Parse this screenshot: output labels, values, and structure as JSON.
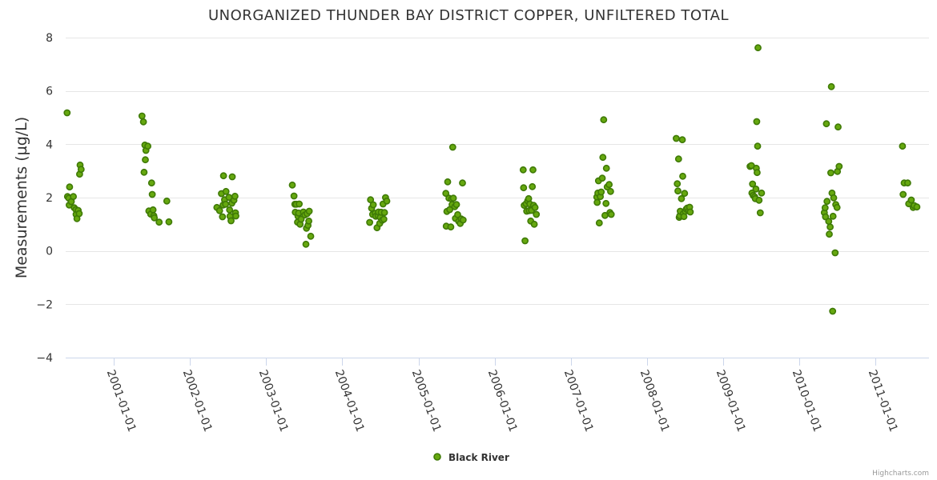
{
  "chart_data": {
    "type": "scatter",
    "title": "UNORGANIZED THUNDER BAY DISTRICT COPPER, UNFILTERED TOTAL",
    "ylabel": "Measurements (µg/L)",
    "xlabel": "",
    "ylim": [
      -4,
      8
    ],
    "yticks": [
      -4,
      -2,
      0,
      2,
      4,
      6,
      8
    ],
    "xlim": [
      "2000-05-15",
      "2011-09-15"
    ],
    "xticks": [
      "2001-01-01",
      "2002-01-01",
      "2003-01-01",
      "2004-01-01",
      "2005-01-01",
      "2006-01-01",
      "2007-01-01",
      "2008-01-01",
      "2009-01-01",
      "2010-01-01",
      "2011-01-01"
    ],
    "grid": true,
    "legend_position": "bottom-center",
    "credits": "Highcharts.com",
    "series": [
      {
        "name": "Black River",
        "color": "#66a80f",
        "points": [
          [
            "2000-05-22",
            5.18
          ],
          [
            "2000-05-24",
            2.04
          ],
          [
            "2000-05-30",
            1.98
          ],
          [
            "2000-06-01",
            1.72
          ],
          [
            "2000-06-03",
            2.4
          ],
          [
            "2000-06-11",
            1.85
          ],
          [
            "2000-06-21",
            2.04
          ],
          [
            "2000-06-25",
            1.62
          ],
          [
            "2000-07-03",
            1.55
          ],
          [
            "2000-07-04",
            1.37
          ],
          [
            "2000-07-08",
            1.21
          ],
          [
            "2000-07-14",
            1.52
          ],
          [
            "2000-07-19",
            1.4
          ],
          [
            "2000-07-21",
            2.88
          ],
          [
            "2000-07-23",
            3.22
          ],
          [
            "2000-07-28",
            3.06
          ],
          [
            "2001-05-16",
            5.06
          ],
          [
            "2001-05-23",
            4.84
          ],
          [
            "2001-05-26",
            2.95
          ],
          [
            "2001-05-30",
            3.97
          ],
          [
            "2001-06-01",
            3.42
          ],
          [
            "2001-06-04",
            3.77
          ],
          [
            "2001-06-13",
            3.93
          ],
          [
            "2001-06-18",
            1.5
          ],
          [
            "2001-06-27",
            1.38
          ],
          [
            "2001-07-01",
            2.55
          ],
          [
            "2001-07-04",
            2.12
          ],
          [
            "2001-07-08",
            1.54
          ],
          [
            "2001-07-12",
            1.32
          ],
          [
            "2001-07-14",
            1.24
          ],
          [
            "2001-08-06",
            1.08
          ],
          [
            "2001-09-12",
            1.87
          ],
          [
            "2001-09-22",
            1.09
          ],
          [
            "2002-05-10",
            1.63
          ],
          [
            "2002-05-23",
            1.51
          ],
          [
            "2002-06-01",
            2.15
          ],
          [
            "2002-06-06",
            1.28
          ],
          [
            "2002-06-09",
            1.72
          ],
          [
            "2002-06-11",
            2.82
          ],
          [
            "2002-06-16",
            1.92
          ],
          [
            "2002-06-21",
            1.75
          ],
          [
            "2002-06-23",
            2.23
          ],
          [
            "2002-07-07",
            2.01
          ],
          [
            "2002-07-10",
            1.54
          ],
          [
            "2002-07-12",
            1.3
          ],
          [
            "2002-07-17",
            1.13
          ],
          [
            "2002-07-21",
            1.79
          ],
          [
            "2002-07-23",
            2.78
          ],
          [
            "2002-07-31",
            1.9
          ],
          [
            "2002-08-05",
            2.05
          ],
          [
            "2002-08-07",
            1.43
          ],
          [
            "2002-08-09",
            1.31
          ],
          [
            "2003-05-07",
            2.47
          ],
          [
            "2003-05-15",
            2.06
          ],
          [
            "2003-05-19",
            1.75
          ],
          [
            "2003-05-21",
            1.45
          ],
          [
            "2003-05-26",
            1.75
          ],
          [
            "2003-06-01",
            1.08
          ],
          [
            "2003-06-03",
            1.3
          ],
          [
            "2003-06-06",
            1.42
          ],
          [
            "2003-06-09",
            1.76
          ],
          [
            "2003-06-13",
            1.0
          ],
          [
            "2003-06-18",
            1.19
          ],
          [
            "2003-06-29",
            1.46
          ],
          [
            "2003-07-06",
            1.35
          ],
          [
            "2003-07-11",
            0.25
          ],
          [
            "2003-07-14",
            0.85
          ],
          [
            "2003-07-17",
            1.4
          ],
          [
            "2003-07-21",
            0.96
          ],
          [
            "2003-07-25",
            1.12
          ],
          [
            "2003-07-27",
            1.49
          ],
          [
            "2003-08-03",
            0.55
          ],
          [
            "2004-05-12",
            1.07
          ],
          [
            "2004-05-16",
            1.92
          ],
          [
            "2004-05-21",
            1.6
          ],
          [
            "2004-05-26",
            1.37
          ],
          [
            "2004-05-29",
            1.73
          ],
          [
            "2004-06-07",
            1.41
          ],
          [
            "2004-06-10",
            1.3
          ],
          [
            "2004-06-16",
            0.87
          ],
          [
            "2004-06-21",
            1.32
          ],
          [
            "2004-06-23",
            1.46
          ],
          [
            "2004-06-29",
            1.03
          ],
          [
            "2004-07-02",
            1.26
          ],
          [
            "2004-07-06",
            1.45
          ],
          [
            "2004-07-11",
            1.15
          ],
          [
            "2004-07-15",
            1.76
          ],
          [
            "2004-07-19",
            1.19
          ],
          [
            "2004-07-22",
            1.44
          ],
          [
            "2004-07-27",
            2.0
          ],
          [
            "2004-08-02",
            1.87
          ],
          [
            "2005-05-12",
            2.16
          ],
          [
            "2005-05-14",
            0.93
          ],
          [
            "2005-05-17",
            1.48
          ],
          [
            "2005-05-21",
            2.59
          ],
          [
            "2005-05-27",
            1.98
          ],
          [
            "2005-05-31",
            1.55
          ],
          [
            "2005-06-05",
            0.9
          ],
          [
            "2005-06-09",
            1.95
          ],
          [
            "2005-06-11",
            1.74
          ],
          [
            "2005-06-14",
            3.89
          ],
          [
            "2005-06-17",
            1.98
          ],
          [
            "2005-06-24",
            1.66
          ],
          [
            "2005-06-27",
            1.22
          ],
          [
            "2005-07-02",
            1.74
          ],
          [
            "2005-07-08",
            1.36
          ],
          [
            "2005-07-13",
            1.11
          ],
          [
            "2005-07-20",
            1.03
          ],
          [
            "2005-07-25",
            1.2
          ],
          [
            "2005-07-31",
            2.55
          ],
          [
            "2005-08-03",
            1.16
          ],
          [
            "2006-05-18",
            3.04
          ],
          [
            "2006-05-20",
            2.37
          ],
          [
            "2006-05-23",
            1.71
          ],
          [
            "2006-05-27",
            0.38
          ],
          [
            "2006-06-01",
            1.77
          ],
          [
            "2006-06-04",
            1.49
          ],
          [
            "2006-06-09",
            1.88
          ],
          [
            "2006-06-13",
            1.96
          ],
          [
            "2006-06-16",
            1.51
          ],
          [
            "2006-06-19",
            1.76
          ],
          [
            "2006-06-23",
            1.12
          ],
          [
            "2006-06-27",
            1.52
          ],
          [
            "2006-07-01",
            2.41
          ],
          [
            "2006-07-04",
            3.04
          ],
          [
            "2006-07-07",
            1.71
          ],
          [
            "2006-07-10",
            1.0
          ],
          [
            "2006-07-14",
            1.63
          ],
          [
            "2006-07-20",
            1.37
          ],
          [
            "2007-05-06",
            2.02
          ],
          [
            "2007-05-08",
            1.82
          ],
          [
            "2007-05-11",
            2.17
          ],
          [
            "2007-05-14",
            2.63
          ],
          [
            "2007-05-18",
            1.05
          ],
          [
            "2007-05-23",
            2.04
          ],
          [
            "2007-05-27",
            2.21
          ],
          [
            "2007-06-01",
            2.73
          ],
          [
            "2007-06-04",
            3.51
          ],
          [
            "2007-06-08",
            4.92
          ],
          [
            "2007-06-14",
            1.33
          ],
          [
            "2007-06-19",
            1.78
          ],
          [
            "2007-06-21",
            3.1
          ],
          [
            "2007-06-25",
            2.4
          ],
          [
            "2007-07-04",
            2.49
          ],
          [
            "2007-07-08",
            1.44
          ],
          [
            "2007-07-11",
            2.23
          ],
          [
            "2007-07-14",
            1.37
          ],
          [
            "2008-05-21",
            4.22
          ],
          [
            "2008-05-26",
            2.52
          ],
          [
            "2008-05-29",
            2.25
          ],
          [
            "2008-06-01",
            3.45
          ],
          [
            "2008-06-04",
            1.26
          ],
          [
            "2008-06-07",
            1.32
          ],
          [
            "2008-06-09",
            1.49
          ],
          [
            "2008-06-15",
            1.96
          ],
          [
            "2008-06-19",
            4.17
          ],
          [
            "2008-06-21",
            2.8
          ],
          [
            "2008-06-24",
            1.4
          ],
          [
            "2008-06-27",
            1.29
          ],
          [
            "2008-06-30",
            2.16
          ],
          [
            "2008-07-03",
            1.49
          ],
          [
            "2008-07-08",
            1.57
          ],
          [
            "2008-07-13",
            1.61
          ],
          [
            "2008-07-20",
            1.5
          ],
          [
            "2008-07-24",
            1.64
          ],
          [
            "2008-07-27",
            1.46
          ],
          [
            "2009-05-10",
            3.17
          ],
          [
            "2009-05-16",
            3.2
          ],
          [
            "2009-05-19",
            2.17
          ],
          [
            "2009-05-22",
            2.51
          ],
          [
            "2009-05-25",
            2.08
          ],
          [
            "2009-06-01",
            2.03
          ],
          [
            "2009-06-04",
            1.96
          ],
          [
            "2009-06-07",
            2.32
          ],
          [
            "2009-06-09",
            3.1
          ],
          [
            "2009-06-11",
            4.85
          ],
          [
            "2009-06-13",
            2.94
          ],
          [
            "2009-06-15",
            3.93
          ],
          [
            "2009-06-17",
            7.62
          ],
          [
            "2009-06-22",
            1.9
          ],
          [
            "2009-06-28",
            1.43
          ],
          [
            "2009-07-04",
            2.17
          ],
          [
            "2010-05-01",
            1.44
          ],
          [
            "2010-05-05",
            1.62
          ],
          [
            "2010-05-07",
            1.28
          ],
          [
            "2010-05-11",
            4.77
          ],
          [
            "2010-05-14",
            1.86
          ],
          [
            "2010-05-22",
            1.11
          ],
          [
            "2010-05-25",
            0.63
          ],
          [
            "2010-05-29",
            0.9
          ],
          [
            "2010-06-01",
            2.93
          ],
          [
            "2010-06-04",
            6.16
          ],
          [
            "2010-06-07",
            2.17
          ],
          [
            "2010-06-10",
            -2.26
          ],
          [
            "2010-06-12",
            1.3
          ],
          [
            "2010-06-15",
            1.99
          ],
          [
            "2010-06-22",
            -0.07
          ],
          [
            "2010-06-25",
            1.74
          ],
          [
            "2010-07-01",
            1.63
          ],
          [
            "2010-07-03",
            2.98
          ],
          [
            "2010-07-06",
            4.65
          ],
          [
            "2010-07-11",
            3.17
          ],
          [
            "2011-05-11",
            3.93
          ],
          [
            "2011-05-14",
            2.12
          ],
          [
            "2011-05-19",
            2.55
          ],
          [
            "2011-06-05",
            2.55
          ],
          [
            "2011-06-10",
            1.77
          ],
          [
            "2011-06-22",
            1.91
          ],
          [
            "2011-07-01",
            1.63
          ],
          [
            "2011-07-06",
            1.7
          ],
          [
            "2011-07-19",
            1.65
          ]
        ]
      }
    ]
  }
}
